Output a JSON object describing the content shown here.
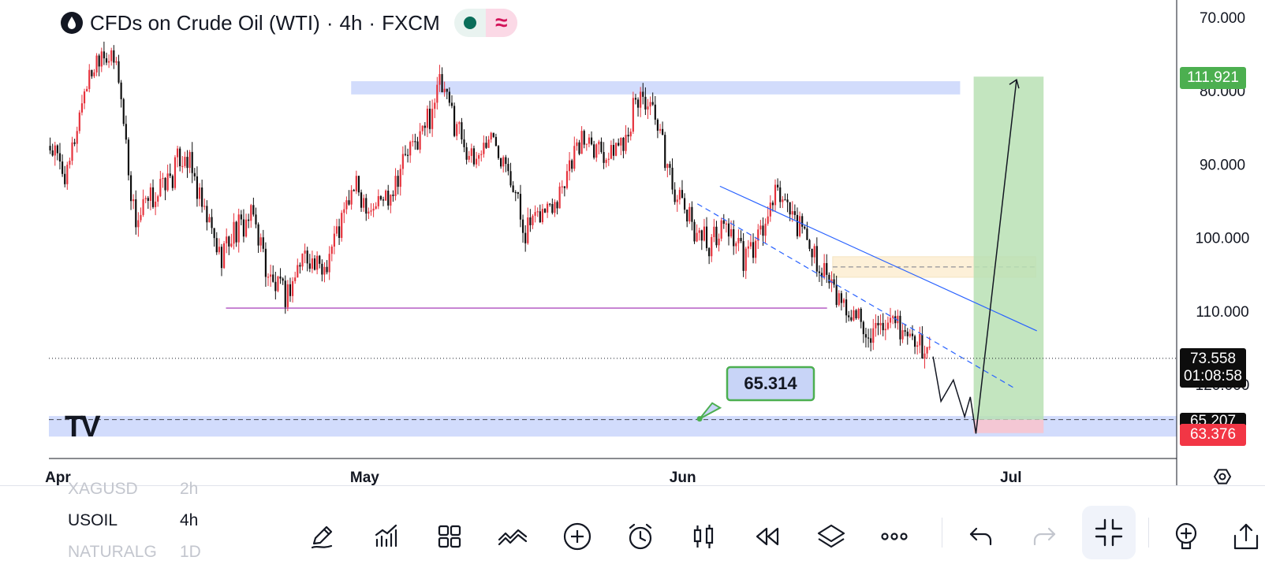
{
  "title": {
    "symbol": "CFDs on Crude Oil (WTI)",
    "separator1": "·",
    "interval": "4h",
    "separator2": "·",
    "exchange": "FXCM",
    "icon": "drop-icon",
    "status_icons": [
      "dot-icon",
      "wave-icon"
    ]
  },
  "colors": {
    "up": "#e6313b",
    "down": "#0d0d0d",
    "zone_blue": "#c7d3fb",
    "target_green": "#b8e0b4",
    "stop_red": "#f7c4cf",
    "trend_blue": "#2962ff",
    "support_purple": "#9c27b0",
    "accent_green": "#4caf50",
    "accent_red": "#f23645"
  },
  "price_axis": {
    "ticks": [
      "120.000",
      "110.000",
      "100.000",
      "90.000",
      "80.000",
      "70.000",
      "65.207"
    ],
    "target_price": "111.921",
    "last_price": "73.558",
    "countdown": "01:08:58",
    "stop_price": "63.376",
    "zone_price": "65.207",
    "settings_icon": "settings-hexagon-icon"
  },
  "time_axis": {
    "labels": [
      "Apr",
      "May",
      "Jun",
      "Jul"
    ]
  },
  "annotation": {
    "callout_value": "65.314"
  },
  "watermark": "TV",
  "watchlist": [
    {
      "symbol": "XAGUSD",
      "interval": "2h",
      "faded": true
    },
    {
      "symbol": "USOIL",
      "interval": "4h",
      "faded": false
    },
    {
      "symbol": "NATURALG",
      "interval": "1D",
      "faded": true
    }
  ],
  "toolbar": {
    "icons": [
      "pencil-icon",
      "indicators-icon",
      "templates-icon",
      "drawing-tools-icon",
      "add-icon",
      "alert-icon",
      "candles-icon",
      "replay-icon",
      "layers-icon",
      "more-icon",
      "undo-icon",
      "redo-icon",
      "fullscreen-exit-icon",
      "add-indicator-icon",
      "share-icon"
    ]
  },
  "chart_data": {
    "type": "candlestick",
    "x_labels": [
      "Apr",
      "May",
      "Jun",
      "Jul"
    ],
    "ylim": [
      57,
      126
    ],
    "y_ticks": [
      70,
      80,
      90,
      100,
      110,
      120
    ],
    "path": [
      [
        102.5,
        104
      ],
      [
        98,
        96
      ],
      [
        110,
        112
      ],
      [
        116,
        117
      ],
      [
        113,
        112
      ],
      [
        92,
        91
      ],
      [
        95,
        96
      ],
      [
        98,
        97
      ],
      [
        102,
        104
      ],
      [
        94,
        92
      ],
      [
        88,
        86
      ],
      [
        91,
        92
      ],
      [
        93,
        94
      ],
      [
        84,
        81
      ],
      [
        82,
        84
      ],
      [
        88,
        89
      ],
      [
        85,
        86
      ],
      [
        91,
        93
      ],
      [
        97,
        97
      ],
      [
        94,
        93
      ],
      [
        96,
        98
      ],
      [
        101,
        102
      ],
      [
        104,
        107
      ],
      [
        111,
        111
      ],
      [
        106,
        104
      ],
      [
        100,
        99
      ],
      [
        104,
        106
      ],
      [
        101,
        102
      ],
      [
        91,
        90
      ],
      [
        93,
        91
      ],
      [
        96,
        97
      ],
      [
        102,
        104
      ],
      [
        104,
        105
      ],
      [
        101,
        100
      ],
      [
        104,
        107
      ],
      [
        110,
        109
      ],
      [
        104,
        103
      ],
      [
        96,
        97
      ],
      [
        92,
        91
      ],
      [
        89,
        90
      ],
      [
        92,
        93
      ],
      [
        87,
        86
      ],
      [
        90,
        91
      ],
      [
        96,
        97
      ],
      [
        93,
        92
      ],
      [
        89,
        90
      ],
      [
        84,
        85
      ],
      [
        80,
        79
      ],
      [
        79,
        77
      ],
      [
        76,
        75
      ],
      [
        78,
        77
      ],
      [
        76,
        75
      ],
      [
        74,
        73.6
      ]
    ],
    "overlays": {
      "resistance_zone": [
        109.5,
        111.3
      ],
      "support_zone": [
        62.9,
        65.7
      ],
      "support_line": 80.4,
      "entry_zone": [
        84.6,
        87.4
      ],
      "trend_line": [
        [
          97.0,
          0.533
        ],
        [
          77.3,
          0.776
        ]
      ],
      "target_box": [
        65.207,
        111.921
      ],
      "stop_box": [
        63.376,
        65.207
      ]
    }
  }
}
